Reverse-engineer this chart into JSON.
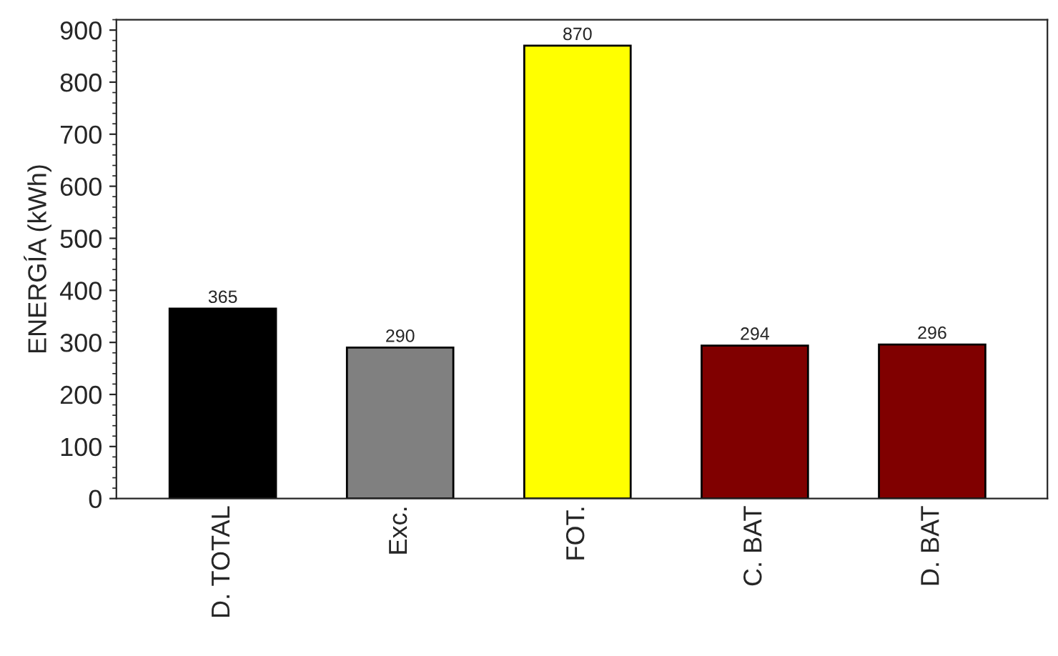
{
  "chart_data": {
    "type": "bar",
    "ylabel": "ENERGÍA (kWh)",
    "categories": [
      "D. TOTAL",
      "Exc.",
      "FOT.",
      "C. BAT",
      "D. BAT"
    ],
    "values": [
      365,
      290,
      870,
      294,
      296
    ],
    "colors": [
      "#000000",
      "#808080",
      "#ffff00",
      "#800000",
      "#800000"
    ],
    "ylim": [
      0,
      920
    ],
    "yticks": [
      0,
      100,
      200,
      300,
      400,
      500,
      600,
      700,
      800,
      900
    ],
    "grid": false,
    "data_labels": true
  }
}
